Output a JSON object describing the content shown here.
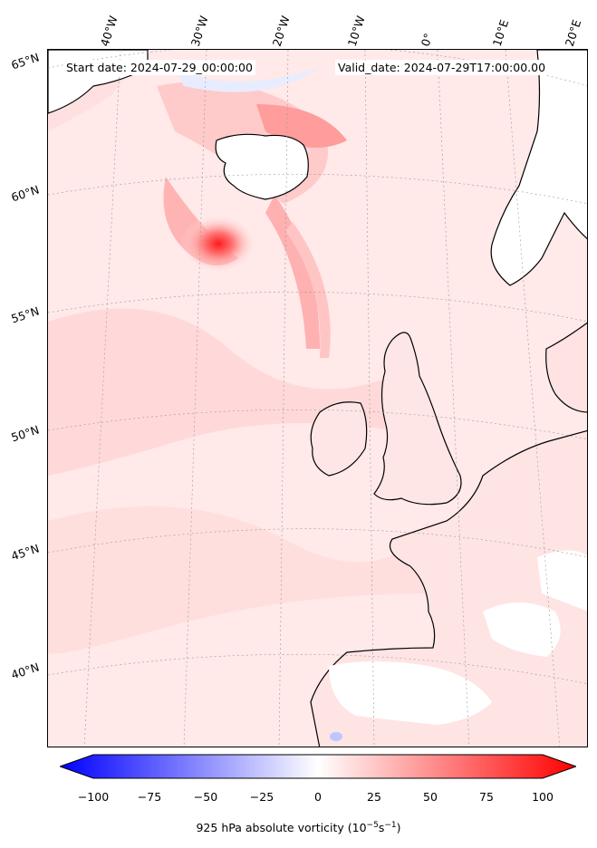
{
  "header": {
    "start_date": "Start date: 2024-07-29_00:00:00",
    "valid_date": "Valid_date: 2024-07-29T17:00:00.00"
  },
  "longitude_labels": [
    "40°W",
    "30°W",
    "20°W",
    "10°W",
    "0°",
    "10°E",
    "20°E"
  ],
  "latitude_labels": [
    "65°N",
    "60°N",
    "55°N",
    "50°N",
    "45°N",
    "40°N"
  ],
  "colorbar": {
    "ticks": [
      "−100",
      "−75",
      "−50",
      "−25",
      "0",
      "25",
      "50",
      "75",
      "100"
    ],
    "label": "925 hPa absolute vorticity (10",
    "label_exp1": "−5",
    "label_mid": "s",
    "label_exp2": "−1",
    "label_end": ")",
    "min": -100,
    "max": 100,
    "low_color": "#0000ff",
    "mid_color": "#ffffff",
    "high_color": "#ff0000"
  },
  "map": {
    "variable": "925 hPa absolute vorticity",
    "region": "North Atlantic / Western Europe",
    "features": [
      "Iceland",
      "Scandinavia",
      "British Isles",
      "Iberia",
      "cyclone southwest of Iceland"
    ]
  }
}
